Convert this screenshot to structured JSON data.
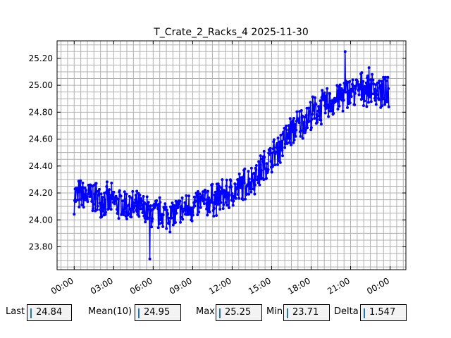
{
  "chart_data": {
    "type": "line",
    "title": "T_Crate_2_Racks_4 2025-11-30",
    "xlabel": "",
    "ylabel": "",
    "x_tick_labels": [
      "00:00",
      "03:00",
      "06:00",
      "09:00",
      "12:00",
      "15:00",
      "18:00",
      "21:00",
      "00:00"
    ],
    "x_tick_hours": [
      0,
      3,
      6,
      9,
      12,
      15,
      18,
      21,
      24
    ],
    "xlim_hours": [
      -1.3,
      25.2
    ],
    "y_tick_labels": [
      "23.80",
      "24.00",
      "24.20",
      "24.40",
      "24.60",
      "24.80",
      "25.00",
      "25.20"
    ],
    "y_ticks": [
      23.8,
      24.0,
      24.2,
      24.4,
      24.6,
      24.8,
      25.0,
      25.2
    ],
    "ylim": [
      23.63,
      25.33
    ],
    "grid": true,
    "color": "#0000ff",
    "series": [
      {
        "trend_x_hours": [
          0,
          1.5,
          3,
          4.5,
          6,
          7.5,
          9,
          10.5,
          12,
          13.5,
          15,
          16.5,
          18,
          19.5,
          21,
          22.5,
          23.9
        ],
        "trend_y": [
          24.18,
          24.17,
          24.13,
          24.09,
          24.05,
          24.04,
          24.1,
          24.15,
          24.2,
          24.3,
          24.46,
          24.66,
          24.78,
          24.88,
          24.95,
          24.99,
          24.92
        ],
        "noise_amplitude": 0.12,
        "min": 23.71,
        "max": 25.25,
        "last": 24.84
      }
    ]
  },
  "stats": {
    "last_label": "Last",
    "last_value": "24.84",
    "mean_label": "Mean(10)",
    "mean_value": "24.95",
    "max_label": "Max",
    "max_value": "25.25",
    "min_label": "Min",
    "min_value": "23.71",
    "delta_label": "Delta",
    "delta_value": "1.547"
  }
}
